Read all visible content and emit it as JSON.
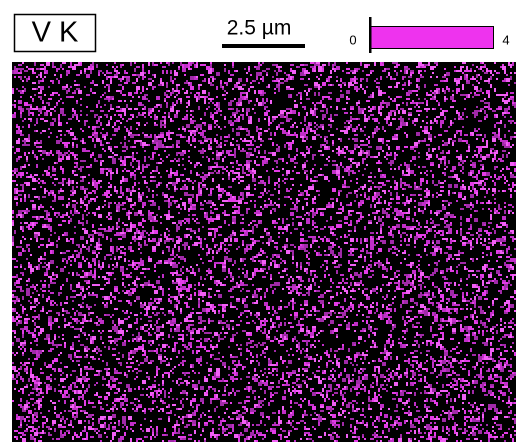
{
  "label": "V K",
  "scale_bar": {
    "text": "2.5 µm"
  },
  "colorbar": {
    "min": 0,
    "max": 4
  }
}
